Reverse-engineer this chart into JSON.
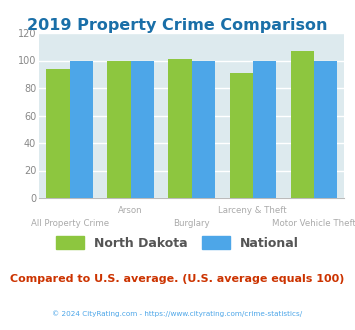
{
  "title": "2019 Property Crime Comparison",
  "title_color": "#1a6fa8",
  "categories": [
    "All Property Crime",
    "Arson",
    "Burglary",
    "Larceny & Theft",
    "Motor Vehicle Theft"
  ],
  "nd_values": [
    94,
    100,
    101,
    91,
    107
  ],
  "national_values": [
    100,
    100,
    100,
    100,
    100
  ],
  "nd_color": "#8dc63f",
  "national_color": "#4da6e8",
  "bg_plot": "#ddeaee",
  "bg_figure": "#ffffff",
  "ylim": [
    0,
    120
  ],
  "yticks": [
    0,
    20,
    40,
    60,
    80,
    100,
    120
  ],
  "legend_nd": "North Dakota",
  "legend_nat": "National",
  "note": "Compared to U.S. average. (U.S. average equals 100)",
  "note_color": "#cc3300",
  "copyright": "© 2024 CityRating.com - https://www.cityrating.com/crime-statistics/",
  "copyright_color": "#4da6e8",
  "grid_color": "#ffffff",
  "tick_label_color": "#888888",
  "row1_indices": [
    1,
    3
  ],
  "row2_indices": [
    0,
    2,
    4
  ]
}
